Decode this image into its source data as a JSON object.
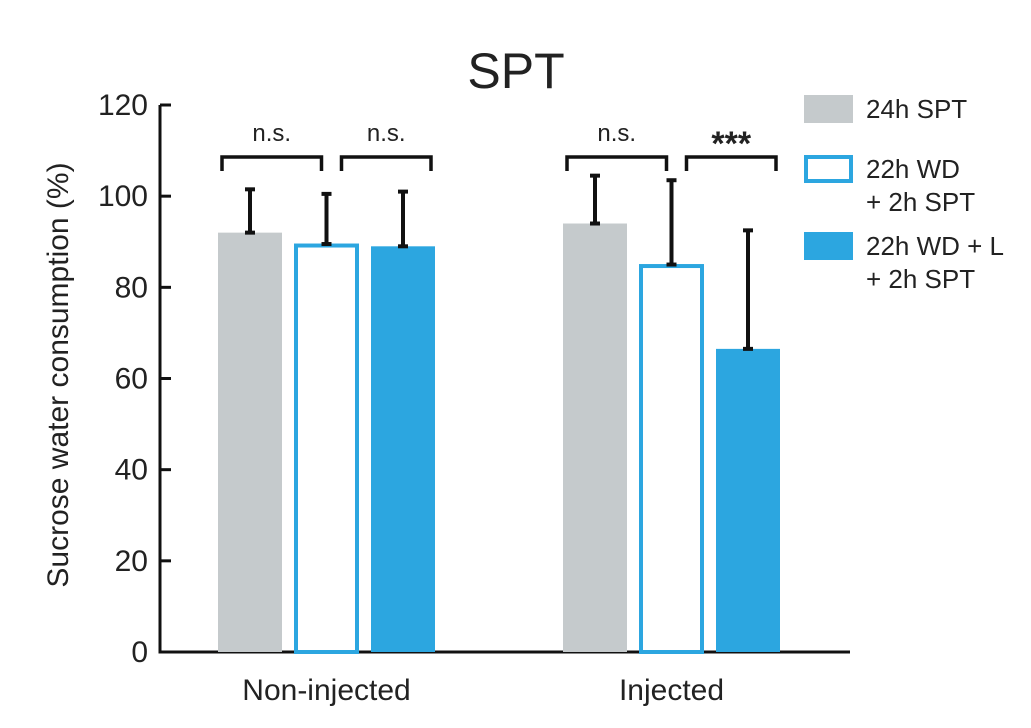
{
  "chart_data": {
    "type": "bar",
    "title": "SPT",
    "xlabel": "",
    "ylabel": "Sucrose water consumption (%)",
    "ylim": [
      0,
      120
    ],
    "yticks": [
      "0",
      "20",
      "40",
      "60",
      "80",
      "100",
      "120"
    ],
    "categories": [
      "Non-injected",
      "Injected"
    ],
    "series": [
      {
        "name": "24h SPT",
        "values": [
          92,
          94
        ],
        "errors": [
          9.5,
          10.5
        ],
        "style": "filled",
        "color": "#c5cacc"
      },
      {
        "name": "22h WD + 2h SPT",
        "values": [
          89.5,
          85
        ],
        "errors": [
          11,
          18.5
        ],
        "style": "outline",
        "color": "#2ca6e0"
      },
      {
        "name": "22h WD + L + 2h SPT",
        "values": [
          89,
          66.5
        ],
        "errors": [
          12,
          26
        ],
        "style": "filled",
        "color": "#2ca6e0"
      }
    ],
    "significance": [
      {
        "category": "Non-injected",
        "between": [
          "24h SPT",
          "22h WD + 2h SPT"
        ],
        "label": "n.s."
      },
      {
        "category": "Non-injected",
        "between": [
          "22h WD + 2h SPT",
          "22h WD + L + 2h SPT"
        ],
        "label": "n.s."
      },
      {
        "category": "Injected",
        "between": [
          "24h SPT",
          "22h WD + 2h SPT"
        ],
        "label": "n.s."
      },
      {
        "category": "Injected",
        "between": [
          "22h WD + 2h SPT",
          "22h WD + L + 2h SPT"
        ],
        "label": "***"
      }
    ],
    "legend": {
      "placement": "right",
      "entries": [
        {
          "lines": [
            "24h SPT"
          ]
        },
        {
          "lines": [
            "22h WD",
            "+ 2h SPT"
          ]
        },
        {
          "lines": [
            "22h WD + L",
            "+ 2h SPT"
          ]
        }
      ]
    },
    "grid": false
  }
}
